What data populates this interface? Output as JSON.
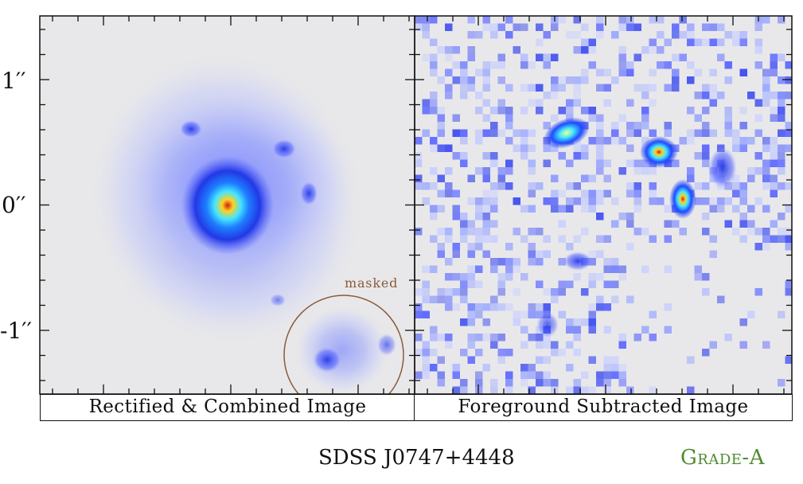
{
  "figure": {
    "y_ticks": [
      "1′′",
      "0′′",
      "-1′′"
    ],
    "mask_label": "masked",
    "left_panel_caption": "Rectified & Combined Image",
    "right_panel_caption": "Foreground Subtracted Image",
    "object_name": "SDSS J0747+4448",
    "grade": "Grade-A",
    "colors": {
      "background": "#e8e8ea",
      "low": "#9aa8ff",
      "mid": "#2238e6",
      "high_cyan": "#35d6ff",
      "high_yellow": "#ffe040",
      "peak": "#d01d1d",
      "mask_circle": "#8a5a3a",
      "grade_text": "#4f8b2f"
    }
  }
}
